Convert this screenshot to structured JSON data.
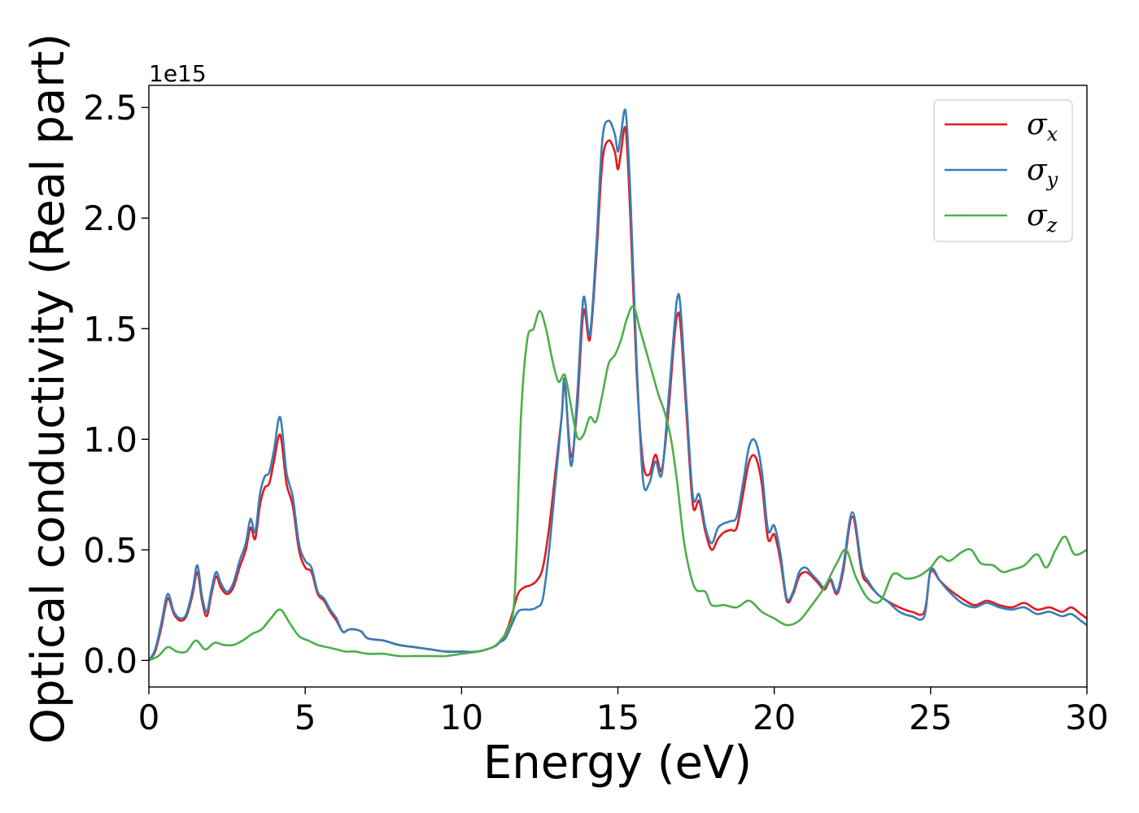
{
  "chart_data": {
    "type": "line",
    "xlabel": "Energy (eV)",
    "ylabel": "Optical conductivity (Real part)",
    "y_offset_label": "1e15",
    "xlim": [
      0,
      30
    ],
    "ylim": [
      -0.12,
      2.6
    ],
    "x_ticks": [
      0,
      5,
      10,
      15,
      20,
      25,
      30
    ],
    "x_tick_labels": [
      "0",
      "5",
      "10",
      "15",
      "20",
      "25",
      "30"
    ],
    "y_ticks": [
      0.0,
      0.5,
      1.0,
      1.5,
      2.0,
      2.5
    ],
    "y_tick_labels": [
      "0.0",
      "0.5",
      "1.0",
      "1.5",
      "2.0",
      "2.5"
    ],
    "grid": false,
    "legend": {
      "placement": "top-right"
    },
    "series": [
      {
        "name": "σx",
        "legend_symbol": "σ",
        "legend_sub": "x",
        "color": "#e41a1c",
        "x": [
          0,
          0.2,
          0.4,
          0.6,
          0.8,
          1.0,
          1.2,
          1.4,
          1.55,
          1.7,
          1.85,
          2.0,
          2.15,
          2.3,
          2.5,
          2.7,
          2.9,
          3.1,
          3.25,
          3.4,
          3.55,
          3.7,
          3.85,
          4.0,
          4.2,
          4.4,
          4.6,
          4.8,
          5.0,
          5.2,
          5.4,
          5.6,
          5.8,
          6.0,
          6.2,
          6.4,
          6.6,
          6.8,
          7.0,
          7.5,
          8.0,
          8.5,
          9.0,
          9.5,
          10.0,
          10.5,
          11.0,
          11.2,
          11.4,
          11.6,
          11.8,
          12.0,
          12.2,
          12.4,
          12.6,
          12.8,
          13.0,
          13.2,
          13.3,
          13.5,
          13.7,
          13.9,
          14.1,
          14.3,
          14.5,
          14.7,
          14.9,
          15.0,
          15.1,
          15.25,
          15.4,
          15.6,
          15.8,
          16.0,
          16.2,
          16.4,
          16.6,
          16.8,
          16.9,
          17.0,
          17.2,
          17.4,
          17.6,
          17.8,
          18.0,
          18.2,
          18.4,
          18.6,
          18.8,
          19.0,
          19.2,
          19.4,
          19.6,
          19.8,
          20.0,
          20.2,
          20.4,
          20.6,
          20.8,
          21.0,
          21.2,
          21.4,
          21.6,
          21.8,
          22.0,
          22.2,
          22.5,
          22.8,
          23.0,
          23.3,
          23.6,
          24.0,
          24.4,
          24.8,
          25.0,
          25.3,
          25.6,
          26.0,
          26.4,
          26.8,
          27.2,
          27.6,
          28.0,
          28.4,
          28.8,
          29.2,
          29.5,
          29.8,
          30.0
        ],
        "y": [
          0.0,
          0.04,
          0.15,
          0.28,
          0.21,
          0.18,
          0.2,
          0.3,
          0.4,
          0.27,
          0.2,
          0.3,
          0.38,
          0.33,
          0.3,
          0.33,
          0.42,
          0.5,
          0.6,
          0.55,
          0.7,
          0.78,
          0.8,
          0.9,
          1.02,
          0.8,
          0.7,
          0.5,
          0.42,
          0.4,
          0.3,
          0.27,
          0.22,
          0.18,
          0.13,
          0.14,
          0.14,
          0.13,
          0.1,
          0.09,
          0.07,
          0.06,
          0.05,
          0.04,
          0.04,
          0.04,
          0.06,
          0.08,
          0.12,
          0.2,
          0.3,
          0.33,
          0.34,
          0.36,
          0.42,
          0.6,
          0.85,
          1.1,
          1.25,
          0.92,
          1.15,
          1.58,
          1.45,
          1.8,
          2.25,
          2.35,
          2.3,
          2.22,
          2.3,
          2.4,
          2.0,
          1.3,
          0.9,
          0.84,
          0.93,
          0.86,
          1.1,
          1.45,
          1.56,
          1.52,
          1.1,
          0.7,
          0.72,
          0.58,
          0.5,
          0.55,
          0.58,
          0.59,
          0.6,
          0.75,
          0.9,
          0.92,
          0.8,
          0.55,
          0.57,
          0.45,
          0.27,
          0.3,
          0.38,
          0.4,
          0.38,
          0.35,
          0.32,
          0.36,
          0.3,
          0.4,
          0.65,
          0.4,
          0.35,
          0.3,
          0.27,
          0.24,
          0.22,
          0.22,
          0.4,
          0.36,
          0.32,
          0.28,
          0.25,
          0.27,
          0.25,
          0.24,
          0.26,
          0.23,
          0.24,
          0.22,
          0.24,
          0.21,
          0.19
        ]
      },
      {
        "name": "σy",
        "legend_symbol": "σ",
        "legend_sub": "y",
        "color": "#377eb8",
        "x": [
          0,
          0.2,
          0.4,
          0.6,
          0.8,
          1.0,
          1.2,
          1.4,
          1.55,
          1.7,
          1.85,
          2.0,
          2.15,
          2.3,
          2.5,
          2.7,
          2.9,
          3.1,
          3.25,
          3.4,
          3.55,
          3.7,
          3.85,
          4.0,
          4.2,
          4.4,
          4.6,
          4.8,
          5.0,
          5.2,
          5.4,
          5.6,
          5.8,
          6.0,
          6.2,
          6.4,
          6.6,
          6.8,
          7.0,
          7.5,
          8.0,
          8.5,
          9.0,
          9.5,
          10.0,
          10.5,
          11.0,
          11.2,
          11.4,
          11.6,
          11.8,
          12.0,
          12.2,
          12.4,
          12.6,
          12.8,
          13.0,
          13.2,
          13.3,
          13.5,
          13.7,
          13.9,
          14.1,
          14.3,
          14.5,
          14.7,
          14.9,
          15.0,
          15.1,
          15.25,
          15.4,
          15.6,
          15.8,
          16.0,
          16.2,
          16.4,
          16.6,
          16.8,
          16.9,
          17.0,
          17.2,
          17.4,
          17.6,
          17.8,
          18.0,
          18.2,
          18.4,
          18.6,
          18.8,
          19.0,
          19.2,
          19.4,
          19.6,
          19.8,
          20.0,
          20.2,
          20.4,
          20.6,
          20.8,
          21.0,
          21.2,
          21.4,
          21.6,
          21.8,
          22.0,
          22.2,
          22.5,
          22.8,
          23.0,
          23.3,
          23.6,
          24.0,
          24.4,
          24.8,
          25.0,
          25.3,
          25.6,
          26.0,
          26.4,
          26.8,
          27.2,
          27.6,
          28.0,
          28.4,
          28.8,
          29.2,
          29.5,
          29.8,
          30.0
        ],
        "y": [
          0.0,
          0.05,
          0.17,
          0.3,
          0.22,
          0.19,
          0.21,
          0.32,
          0.43,
          0.29,
          0.22,
          0.32,
          0.4,
          0.35,
          0.31,
          0.35,
          0.45,
          0.53,
          0.64,
          0.58,
          0.75,
          0.83,
          0.85,
          0.95,
          1.1,
          0.85,
          0.74,
          0.53,
          0.45,
          0.42,
          0.31,
          0.28,
          0.23,
          0.19,
          0.13,
          0.14,
          0.14,
          0.13,
          0.1,
          0.09,
          0.07,
          0.06,
          0.05,
          0.04,
          0.04,
          0.04,
          0.06,
          0.08,
          0.1,
          0.16,
          0.22,
          0.23,
          0.23,
          0.24,
          0.28,
          0.5,
          0.8,
          1.1,
          1.27,
          0.88,
          1.2,
          1.64,
          1.47,
          1.85,
          2.35,
          2.44,
          2.38,
          2.3,
          2.38,
          2.48,
          2.1,
          1.35,
          0.82,
          0.8,
          0.9,
          0.84,
          1.15,
          1.5,
          1.64,
          1.6,
          1.15,
          0.74,
          0.75,
          0.6,
          0.53,
          0.6,
          0.62,
          0.63,
          0.65,
          0.8,
          0.97,
          0.99,
          0.86,
          0.59,
          0.61,
          0.48,
          0.28,
          0.31,
          0.4,
          0.42,
          0.39,
          0.36,
          0.33,
          0.37,
          0.31,
          0.42,
          0.67,
          0.42,
          0.36,
          0.3,
          0.27,
          0.22,
          0.2,
          0.2,
          0.41,
          0.36,
          0.31,
          0.26,
          0.24,
          0.26,
          0.24,
          0.23,
          0.24,
          0.21,
          0.22,
          0.2,
          0.21,
          0.18,
          0.16
        ]
      },
      {
        "name": "σz",
        "legend_symbol": "σ",
        "legend_sub": "z",
        "color": "#4daf4a",
        "x": [
          0,
          0.3,
          0.6,
          0.9,
          1.2,
          1.5,
          1.8,
          2.1,
          2.4,
          2.7,
          3.0,
          3.3,
          3.6,
          3.9,
          4.2,
          4.5,
          4.8,
          5.1,
          5.4,
          5.7,
          6.0,
          6.3,
          6.6,
          7.0,
          7.5,
          8.0,
          8.5,
          9.0,
          9.5,
          10.0,
          10.5,
          11.0,
          11.3,
          11.5,
          11.7,
          11.9,
          12.1,
          12.3,
          12.5,
          12.7,
          12.9,
          13.1,
          13.3,
          13.5,
          13.7,
          13.9,
          14.1,
          14.3,
          14.5,
          14.7,
          14.9,
          15.1,
          15.3,
          15.5,
          15.7,
          15.9,
          16.1,
          16.3,
          16.5,
          16.7,
          16.9,
          17.1,
          17.3,
          17.5,
          17.8,
          18.0,
          18.4,
          18.8,
          19.2,
          19.6,
          20.0,
          20.4,
          20.8,
          21.2,
          21.6,
          22.0,
          22.3,
          22.6,
          23.0,
          23.4,
          23.8,
          24.2,
          24.6,
          25.0,
          25.3,
          25.6,
          26.0,
          26.3,
          26.6,
          27.0,
          27.3,
          27.6,
          28.0,
          28.4,
          28.7,
          29.0,
          29.3,
          29.6,
          30.0
        ],
        "y": [
          0.0,
          0.02,
          0.06,
          0.04,
          0.04,
          0.09,
          0.05,
          0.08,
          0.07,
          0.07,
          0.09,
          0.12,
          0.14,
          0.19,
          0.23,
          0.17,
          0.11,
          0.09,
          0.07,
          0.06,
          0.05,
          0.04,
          0.04,
          0.03,
          0.03,
          0.02,
          0.02,
          0.02,
          0.02,
          0.03,
          0.04,
          0.06,
          0.1,
          0.15,
          0.3,
          1.1,
          1.45,
          1.5,
          1.58,
          1.5,
          1.36,
          1.26,
          1.29,
          1.15,
          1.01,
          1.02,
          1.1,
          1.08,
          1.2,
          1.34,
          1.38,
          1.45,
          1.55,
          1.6,
          1.5,
          1.4,
          1.3,
          1.2,
          1.12,
          1.0,
          0.8,
          0.55,
          0.4,
          0.32,
          0.31,
          0.25,
          0.25,
          0.24,
          0.27,
          0.22,
          0.19,
          0.16,
          0.18,
          0.25,
          0.33,
          0.44,
          0.5,
          0.38,
          0.28,
          0.27,
          0.39,
          0.37,
          0.38,
          0.42,
          0.47,
          0.45,
          0.49,
          0.5,
          0.44,
          0.43,
          0.4,
          0.41,
          0.43,
          0.48,
          0.42,
          0.5,
          0.56,
          0.48,
          0.5
        ]
      }
    ]
  }
}
